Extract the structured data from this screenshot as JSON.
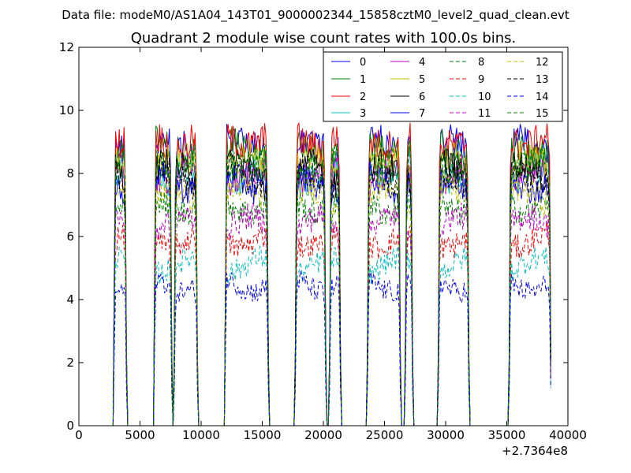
{
  "figure": {
    "suptitle": "Data file: modeM0/AS1A04_143T01_9000002344_15858cztM0_level2_quad_clean.evt"
  },
  "chart_data": {
    "type": "line",
    "title": "Quadrant 2 module wise count rates with 100.0s bins.",
    "xlabel": "",
    "ylabel": "",
    "x_offset_label": "+2.7364e8",
    "xlim": [
      0,
      40000
    ],
    "ylim": [
      0,
      12
    ],
    "xticks": [
      0,
      5000,
      10000,
      15000,
      20000,
      25000,
      30000,
      35000,
      40000
    ],
    "yticks": [
      0,
      2,
      4,
      6,
      8,
      10,
      12
    ],
    "grid": false,
    "legend_position": "top-right",
    "legend_columns": 4,
    "good_time_intervals": [
      [
        2850,
        3900
      ],
      [
        6150,
        7600
      ],
      [
        7800,
        9700
      ],
      [
        11950,
        15500
      ],
      [
        17700,
        20200
      ],
      [
        20500,
        21400
      ],
      [
        23600,
        26300
      ],
      [
        26700,
        27300
      ],
      [
        29400,
        31900
      ],
      [
        35200,
        38600
      ]
    ],
    "series": [
      {
        "name": "0",
        "color": "#0000ff",
        "style": "solid",
        "level": 8.9
      },
      {
        "name": "1",
        "color": "#008000",
        "style": "solid",
        "level": 8.8
      },
      {
        "name": "2",
        "color": "#ff0000",
        "style": "solid",
        "level": 9.1
      },
      {
        "name": "3",
        "color": "#00bfbf",
        "style": "solid",
        "level": 8.0
      },
      {
        "name": "4",
        "color": "#bf00bf",
        "style": "solid",
        "level": 7.9
      },
      {
        "name": "5",
        "color": "#bfbf00",
        "style": "solid",
        "level": 8.3
      },
      {
        "name": "6",
        "color": "#000000",
        "style": "solid",
        "level": 8.1
      },
      {
        "name": "7",
        "color": "#0000ff",
        "style": "solid",
        "level": 7.7
      },
      {
        "name": "8",
        "color": "#008000",
        "style": "dashed",
        "level": 7.0
      },
      {
        "name": "9",
        "color": "#ff0000",
        "style": "dashed",
        "level": 5.9
      },
      {
        "name": "10",
        "color": "#00bfbf",
        "style": "dashed",
        "level": 5.1
      },
      {
        "name": "11",
        "color": "#bf00bf",
        "style": "dashed",
        "level": 6.4
      },
      {
        "name": "12",
        "color": "#bfbf00",
        "style": "dashed",
        "level": 7.3
      },
      {
        "name": "13",
        "color": "#000000",
        "style": "dashed",
        "level": 7.9
      },
      {
        "name": "14",
        "color": "#0000ff",
        "style": "dashed",
        "level": 4.5
      },
      {
        "name": "15",
        "color": "#008000",
        "style": "dashed",
        "level": 8.4
      }
    ]
  }
}
